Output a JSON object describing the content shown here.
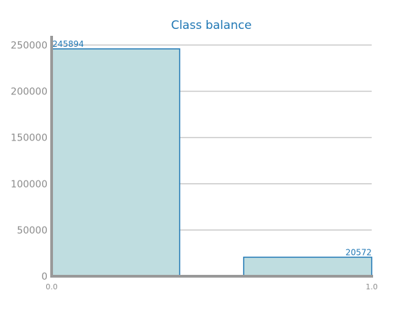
{
  "chart_data": {
    "type": "bar",
    "title": "Class balance",
    "xlabel": "",
    "ylabel": "",
    "x_ticks": [
      "0.0",
      "1.0"
    ],
    "y_ticks": [
      0,
      50000,
      100000,
      150000,
      200000,
      250000
    ],
    "ylim": [
      0,
      260000
    ],
    "xlim": [
      0.0,
      1.0
    ],
    "bars": [
      {
        "x_start": 0.0,
        "x_end": 0.4,
        "value": 245894,
        "label": "245894"
      },
      {
        "x_start": 0.6,
        "x_end": 1.0,
        "value": 20572,
        "label": "20572"
      }
    ],
    "grid": true,
    "colors": {
      "bar_fill": "#bfdde0",
      "bar_edge": "#1f77b4",
      "title": "#1f77b4",
      "label": "#1f77b4",
      "tick": "#8c8c8c",
      "grid": "#c8c8c8",
      "axis": "#999999"
    }
  }
}
